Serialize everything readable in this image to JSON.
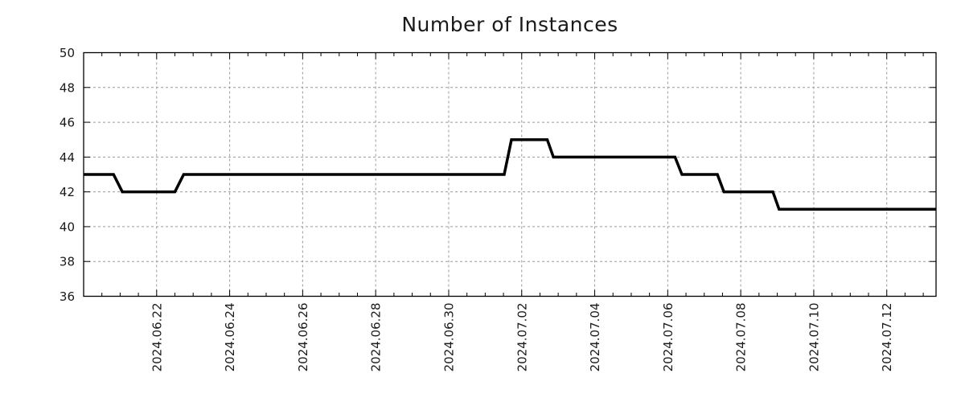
{
  "title": "Number of Instances",
  "colors": {
    "background": "#ffffff",
    "line": "#000000",
    "grid": "#9a9a9a",
    "axis": "#000000",
    "text": "#1a1a1a"
  },
  "chart_data": {
    "type": "line",
    "title": "Number of Instances",
    "style": "step-line with short linear ramps, no markers, no legend",
    "x_axis": {
      "unit": "days since 2024-06-20 00:00",
      "domain": [
        0,
        23.35
      ],
      "major_ticks": [
        {
          "t": 2,
          "label": "2024.06.22"
        },
        {
          "t": 4,
          "label": "2024.06.24"
        },
        {
          "t": 6,
          "label": "2024.06.26"
        },
        {
          "t": 8,
          "label": "2024.06.28"
        },
        {
          "t": 10,
          "label": "2024.06.30"
        },
        {
          "t": 12,
          "label": "2024.07.02"
        },
        {
          "t": 14,
          "label": "2024.07.04"
        },
        {
          "t": 16,
          "label": "2024.07.06"
        },
        {
          "t": 18,
          "label": "2024.07.08"
        },
        {
          "t": 20,
          "label": "2024.07.10"
        },
        {
          "t": 22,
          "label": "2024.07.12"
        }
      ],
      "minor_tick_step": 0.5,
      "label_rotation_deg": -90
    },
    "y_axis": {
      "domain": [
        36,
        50
      ],
      "major_ticks": [
        36,
        38,
        40,
        42,
        44,
        46,
        48,
        50
      ]
    },
    "grid": true,
    "legend": "none",
    "series": [
      {
        "name": "instances",
        "color": "#000000",
        "points": [
          [
            0.0,
            43
          ],
          [
            0.82,
            43
          ],
          [
            1.06,
            42
          ],
          [
            2.5,
            42
          ],
          [
            2.74,
            43
          ],
          [
            11.52,
            43
          ],
          [
            11.72,
            45
          ],
          [
            12.7,
            45
          ],
          [
            12.87,
            44
          ],
          [
            16.2,
            44
          ],
          [
            16.39,
            43
          ],
          [
            17.36,
            43
          ],
          [
            17.54,
            42
          ],
          [
            18.88,
            42
          ],
          [
            19.05,
            41
          ],
          [
            23.35,
            41
          ]
        ]
      }
    ]
  }
}
